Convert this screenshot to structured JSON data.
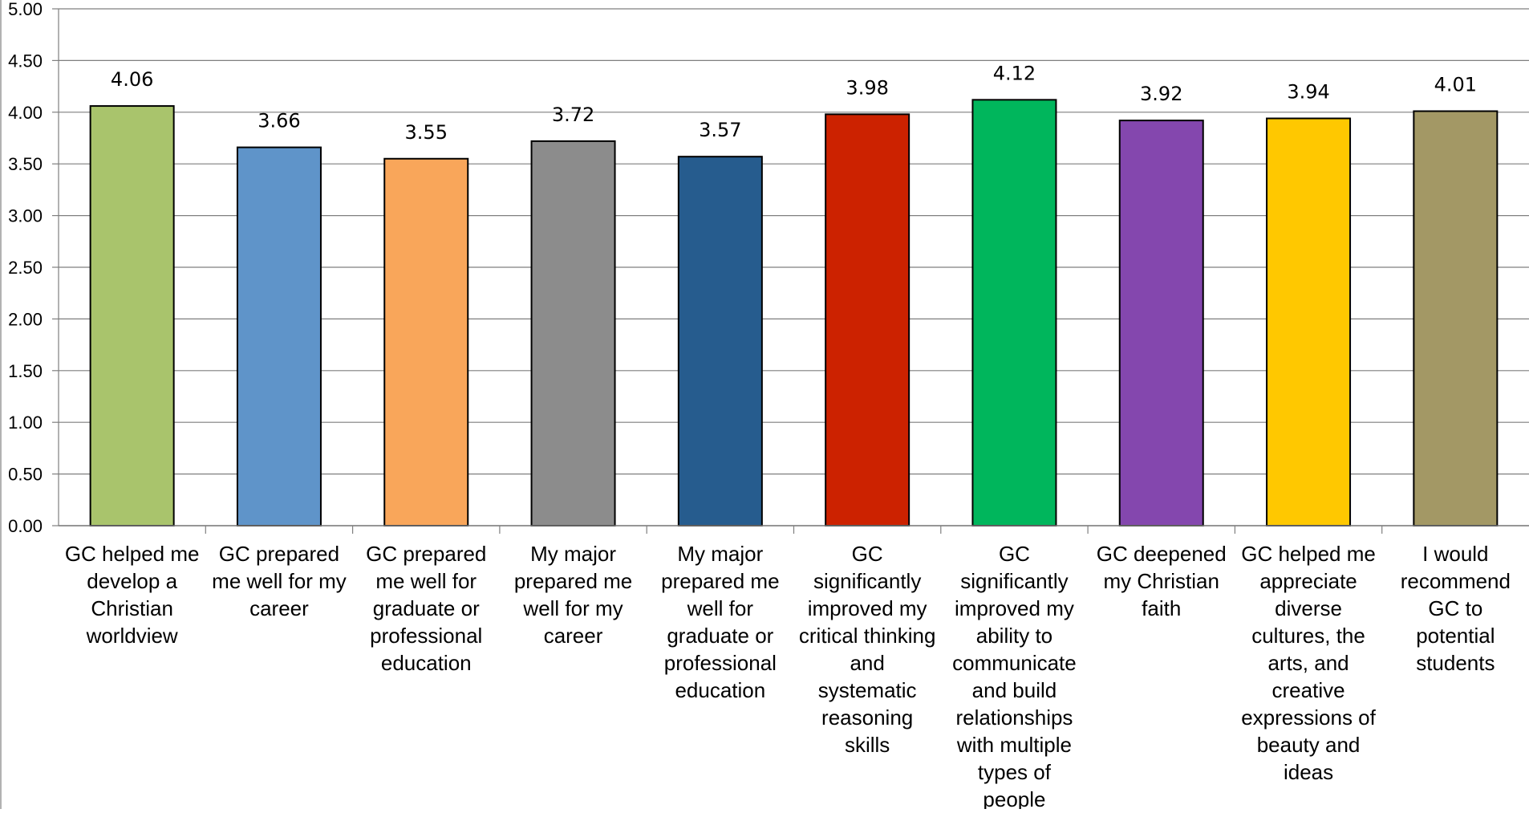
{
  "chart_data": {
    "type": "bar",
    "title": "",
    "xlabel": "",
    "ylabel": "",
    "ylim": [
      0,
      5
    ],
    "yticks": [
      "0.00",
      "0.50",
      "1.00",
      "1.50",
      "2.00",
      "2.50",
      "3.00",
      "3.50",
      "4.00",
      "4.50",
      "5.00"
    ],
    "grid": true,
    "legend": "none",
    "categories": [
      [
        "GC helped me",
        "develop a",
        "Christian",
        "worldview"
      ],
      [
        "GC prepared",
        "me well for my",
        "career"
      ],
      [
        "GC prepared",
        "me well for",
        "graduate or",
        "professional",
        "education"
      ],
      [
        "My major",
        "prepared me",
        "well for my",
        "career"
      ],
      [
        "My major",
        "prepared me",
        "well for",
        "graduate or",
        "professional",
        "education"
      ],
      [
        "GC",
        "significantly",
        "improved my",
        "critical thinking",
        "and",
        "systematic",
        "reasoning",
        "skills"
      ],
      [
        "GC",
        "significantly",
        "improved my",
        "ability to",
        "communicate",
        "and build",
        "relationships",
        "with multiple",
        "types of",
        "people"
      ],
      [
        "GC deepened",
        "my Christian",
        "faith"
      ],
      [
        "GC helped me",
        "appreciate",
        "diverse",
        "cultures, the",
        "arts, and",
        "creative",
        "expressions of",
        "beauty and",
        "ideas"
      ],
      [
        "I would",
        "recommend",
        "GC to",
        "potential",
        "students"
      ]
    ],
    "values": [
      4.06,
      3.66,
      3.55,
      3.72,
      3.57,
      3.98,
      4.12,
      3.92,
      3.94,
      4.01
    ],
    "value_labels": [
      "4.06",
      "3.66",
      "3.55",
      "3.72",
      "3.57",
      "3.98",
      "4.12",
      "3.92",
      "3.94",
      "4.01"
    ],
    "colors": [
      "#A9C46C",
      "#5F94C9",
      "#F9A65A",
      "#8C8C8C",
      "#265C8E",
      "#CC2200",
      "#00B65C",
      "#8447AE",
      "#FFC800",
      "#A39865"
    ]
  }
}
